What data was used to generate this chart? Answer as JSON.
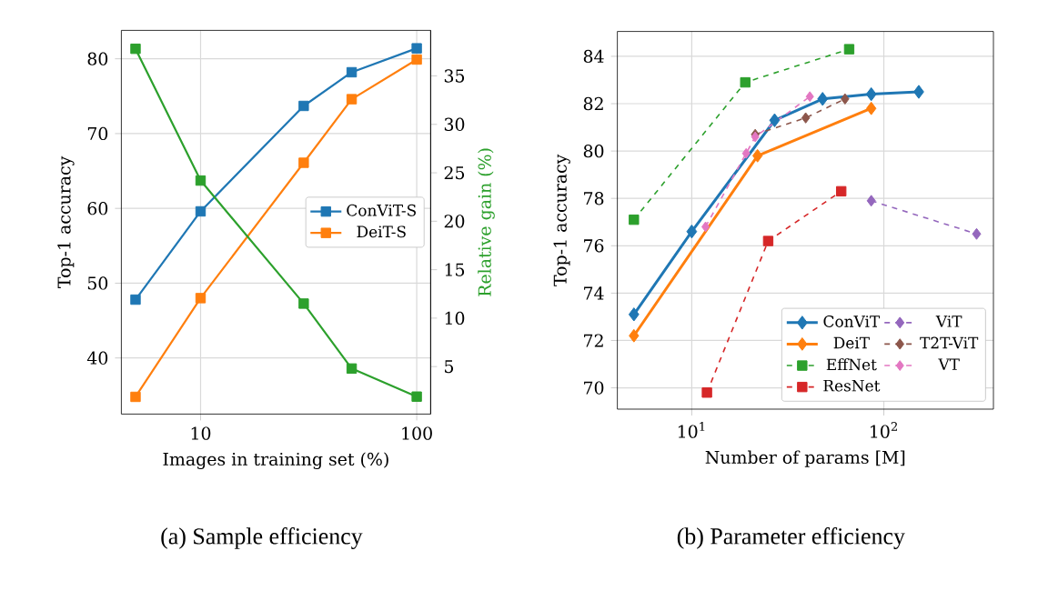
{
  "chart_data": [
    {
      "type": "line",
      "xlabel": "Images in training set (%)",
      "ylabel": "Top-1 accuracy",
      "y2label": "Relative gain (%)",
      "log": "x",
      "grid": true,
      "legend": "right",
      "x": [
        5,
        10,
        30,
        50,
        100
      ],
      "xlim": [
        4.3,
        116
      ],
      "ylim": [
        32.5,
        83.8
      ],
      "y2lim": [
        0.1,
        39.7
      ],
      "xticks": [
        10,
        100
      ],
      "yticks": [
        40,
        50,
        60,
        70,
        80
      ],
      "y2ticks": [
        5,
        10,
        15,
        20,
        25,
        30,
        35
      ],
      "series": [
        {
          "name": "ConViT-S",
          "color": "#1f77b4",
          "marker": "square",
          "line_style": "solid",
          "values": [
            47.8,
            59.6,
            73.7,
            78.2,
            81.4
          ]
        },
        {
          "name": "DeiT-S",
          "color": "#ff7f0e",
          "marker": "square",
          "line_style": "solid",
          "values": [
            34.8,
            48.0,
            66.1,
            74.6,
            79.9
          ]
        },
        {
          "color": "#2ca02c",
          "marker": "square",
          "line_style": "solid",
          "axis": "y2",
          "values": [
            37.8,
            24.2,
            11.5,
            4.8,
            1.9
          ]
        }
      ],
      "annotations": [
        "(a) Sample efficiency"
      ]
    },
    {
      "type": "line",
      "xlabel": "Number of params [M]",
      "ylabel": "Top-1 accuracy",
      "log": "x",
      "grid": true,
      "legend": "bottom right",
      "xlim": [
        4.1,
        372
      ],
      "ylim": [
        69.1,
        85.05
      ],
      "xticks": [
        {
          "value": 10,
          "label": "10$^{1}$"
        },
        {
          "value": 100,
          "label": "10$^{2}$"
        }
      ],
      "yticks": [
        70,
        72,
        74,
        76,
        78,
        80,
        82,
        84
      ],
      "series": [
        {
          "name": "ConViT",
          "color": "#1f77b4",
          "marker": "diamond",
          "line_style": "solid",
          "x": [
            5,
            10,
            27,
            48,
            86,
            152
          ],
          "values": [
            73.1,
            76.6,
            81.3,
            82.2,
            82.4,
            82.5
          ]
        },
        {
          "name": "DeiT",
          "color": "#ff7f0e",
          "marker": "diamond",
          "line_style": "solid",
          "x": [
            5,
            22,
            86
          ],
          "values": [
            72.2,
            79.8,
            81.8
          ]
        },
        {
          "name": "EffNet",
          "color": "#2ca02c",
          "marker": "square",
          "line_style": "dashed",
          "x": [
            5,
            19,
            66
          ],
          "values": [
            77.1,
            82.9,
            84.3
          ]
        },
        {
          "name": "ResNet",
          "color": "#d62728",
          "marker": "square",
          "line_style": "dashed",
          "x": [
            12,
            25,
            60
          ],
          "values": [
            69.8,
            76.2,
            78.3
          ]
        },
        {
          "name": "ViT",
          "color": "#9467bd",
          "marker": "diamond",
          "line_style": "dashed",
          "x": [
            86,
            304
          ],
          "values": [
            77.9,
            76.5
          ]
        },
        {
          "name": "T2T-ViT",
          "color": "#8c564b",
          "marker": "diamond",
          "line_style": "dashed",
          "x": [
            21.4,
            39.2,
            62.8
          ],
          "values": [
            80.7,
            81.4,
            82.2
          ]
        },
        {
          "name": "VT",
          "color": "#e377c2",
          "marker": "diamond",
          "line_style": "dashed",
          "x": [
            11.8,
            19.2,
            21.4,
            41.2
          ],
          "values": [
            76.8,
            79.9,
            80.6,
            82.3
          ]
        }
      ],
      "annotations": [
        "(b) Parameter efficiency"
      ]
    }
  ]
}
